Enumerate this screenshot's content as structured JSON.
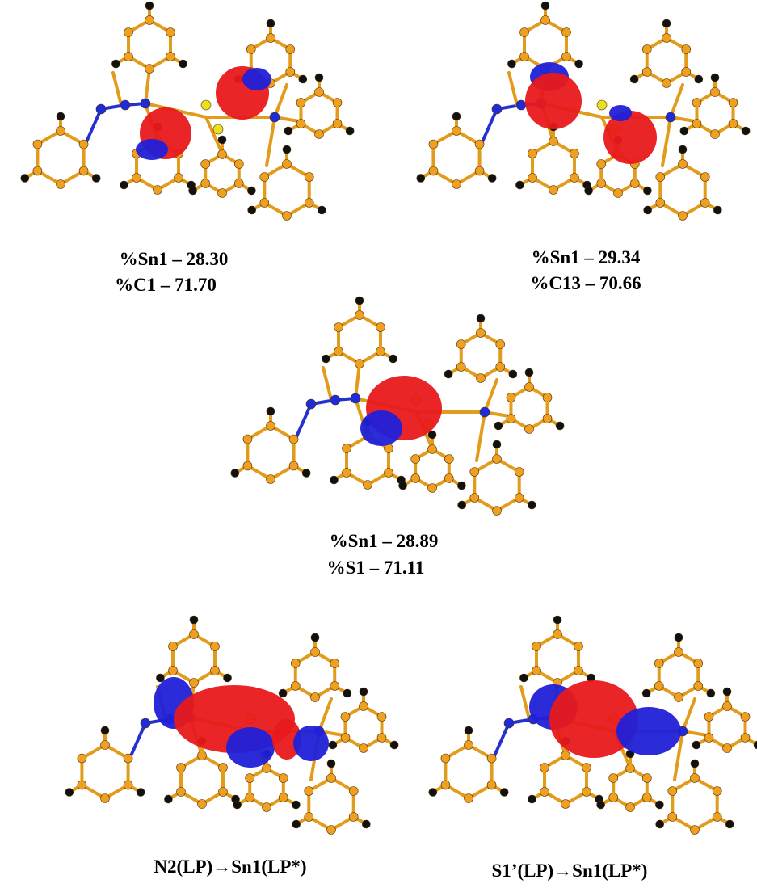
{
  "panels": [
    {
      "lines": [
        "%Sn1 – 28.30",
        "%C1  – 71.70"
      ]
    },
    {
      "lines": [
        "%Sn1 – 29.34",
        "%C13  – 70.66"
      ]
    },
    {
      "lines": [
        "%Sn1 – 28.89",
        "%S1  – 71.11"
      ]
    },
    {
      "lines": [
        "N2(LP)→Sn1(LP*)"
      ]
    },
    {
      "lines": [
        "S1’(LP)→Sn1(LP*)"
      ]
    }
  ]
}
